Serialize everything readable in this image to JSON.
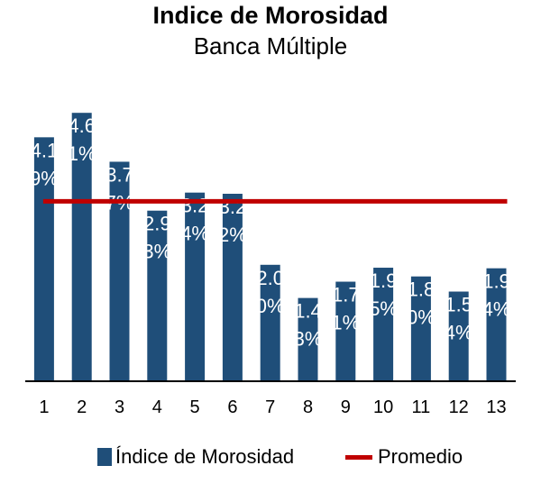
{
  "chart_data": {
    "type": "bar",
    "title": "Indice de Morosidad",
    "subtitle": "Banca Múltiple",
    "categories": [
      "1",
      "2",
      "3",
      "4",
      "5",
      "6",
      "7",
      "8",
      "9",
      "10",
      "11",
      "12",
      "13"
    ],
    "series": [
      {
        "name": "Índice de Morosidad",
        "type": "bar",
        "color": "#1f4e79",
        "values": [
          4.19,
          4.61,
          3.77,
          2.93,
          3.24,
          3.22,
          2.0,
          1.43,
          1.71,
          1.95,
          1.8,
          1.54,
          1.94
        ],
        "labels": [
          "4.19%",
          "4.61%",
          "3.77%",
          "2.93%",
          "3.24%",
          "3.22%",
          "2.00%",
          "1.43%",
          "1.71%",
          "1.95%",
          "1.80%",
          "1.54%",
          "1.94%"
        ]
      },
      {
        "name": "Promedio",
        "type": "line",
        "color": "#c00000",
        "values": [
          3.09,
          3.09,
          3.09,
          3.09,
          3.09,
          3.09,
          3.09,
          3.09,
          3.09,
          3.09,
          3.09,
          3.09,
          3.09
        ]
      }
    ],
    "xlabel": "",
    "ylabel": "",
    "ylim": [
      0,
      5
    ],
    "grid": false,
    "legend": "bottom"
  }
}
